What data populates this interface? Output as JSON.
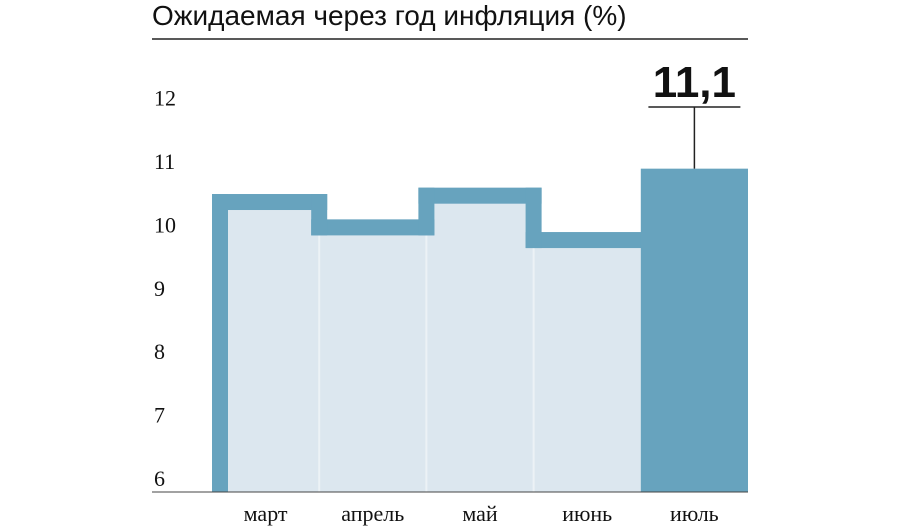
{
  "chart_data": {
    "type": "bar",
    "title": "Ожидаемая через год инфляция (%)",
    "categories": [
      "март",
      "апрель",
      "май",
      "июнь",
      "июль"
    ],
    "values": [
      10.7,
      10.3,
      10.8,
      10.1,
      11.1
    ],
    "highlight": {
      "category": "июль",
      "label": "11,1"
    },
    "yticks": [
      6,
      7,
      8,
      9,
      10,
      11,
      12
    ],
    "ylim": [
      6,
      12.5
    ],
    "grid": false,
    "colors": {
      "accent": "#67a3be",
      "light_fill": "#dce7ef",
      "separator": "#ecf2f6",
      "text": "#111111",
      "rule": "#222222"
    }
  }
}
